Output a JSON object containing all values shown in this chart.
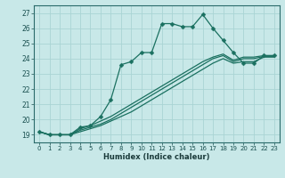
{
  "xlabel": "Humidex (Indice chaleur)",
  "background_color": "#c8e8e8",
  "grid_color": "#aad4d4",
  "line_color": "#1a7060",
  "xlim": [
    -0.5,
    23.5
  ],
  "ylim": [
    18.5,
    27.5
  ],
  "xticks": [
    0,
    1,
    2,
    3,
    4,
    5,
    6,
    7,
    8,
    9,
    10,
    11,
    12,
    13,
    14,
    15,
    16,
    17,
    18,
    19,
    20,
    21,
    22,
    23
  ],
  "yticks": [
    19,
    20,
    21,
    22,
    23,
    24,
    25,
    26,
    27
  ],
  "lines": [
    {
      "x": [
        0,
        1,
        2,
        3,
        4,
        5,
        6,
        7,
        8,
        9,
        10,
        11,
        12,
        13,
        14,
        15,
        16,
        17,
        18,
        19,
        20,
        21,
        22,
        23
      ],
      "y": [
        19.2,
        19.0,
        19.0,
        19.0,
        19.5,
        19.6,
        20.2,
        21.3,
        23.6,
        23.8,
        24.4,
        24.4,
        26.3,
        26.3,
        26.1,
        26.1,
        26.9,
        26.0,
        25.2,
        24.4,
        23.7,
        23.7,
        24.2,
        24.2
      ],
      "marker": "D",
      "markersize": 2.5,
      "linewidth": 0.9
    },
    {
      "x": [
        0,
        1,
        2,
        3,
        4,
        5,
        6,
        7,
        8,
        9,
        10,
        11,
        12,
        13,
        14,
        15,
        16,
        17,
        18,
        19,
        20,
        21,
        22,
        23
      ],
      "y": [
        19.2,
        19.0,
        19.0,
        19.0,
        19.2,
        19.4,
        19.6,
        19.9,
        20.2,
        20.5,
        20.9,
        21.3,
        21.7,
        22.1,
        22.5,
        22.9,
        23.3,
        23.7,
        24.0,
        23.7,
        23.8,
        23.8,
        24.1,
        24.1
      ],
      "marker": null,
      "markersize": 0,
      "linewidth": 0.9
    },
    {
      "x": [
        0,
        1,
        2,
        3,
        4,
        5,
        6,
        7,
        8,
        9,
        10,
        11,
        12,
        13,
        14,
        15,
        16,
        17,
        18,
        19,
        20,
        21,
        22,
        23
      ],
      "y": [
        19.2,
        19.0,
        19.0,
        19.0,
        19.3,
        19.5,
        19.7,
        20.0,
        20.4,
        20.8,
        21.2,
        21.6,
        22.0,
        22.4,
        22.8,
        23.2,
        23.6,
        24.0,
        24.2,
        23.8,
        24.0,
        24.0,
        24.15,
        24.15
      ],
      "marker": null,
      "markersize": 0,
      "linewidth": 0.9
    },
    {
      "x": [
        0,
        1,
        2,
        3,
        4,
        5,
        6,
        7,
        8,
        9,
        10,
        11,
        12,
        13,
        14,
        15,
        16,
        17,
        18,
        19,
        20,
        21,
        22,
        23
      ],
      "y": [
        19.2,
        19.0,
        19.0,
        19.0,
        19.4,
        19.6,
        19.9,
        20.2,
        20.6,
        21.0,
        21.4,
        21.8,
        22.2,
        22.6,
        23.0,
        23.4,
        23.8,
        24.1,
        24.3,
        23.9,
        24.1,
        24.1,
        24.2,
        24.2
      ],
      "marker": null,
      "markersize": 0,
      "linewidth": 0.9
    }
  ]
}
